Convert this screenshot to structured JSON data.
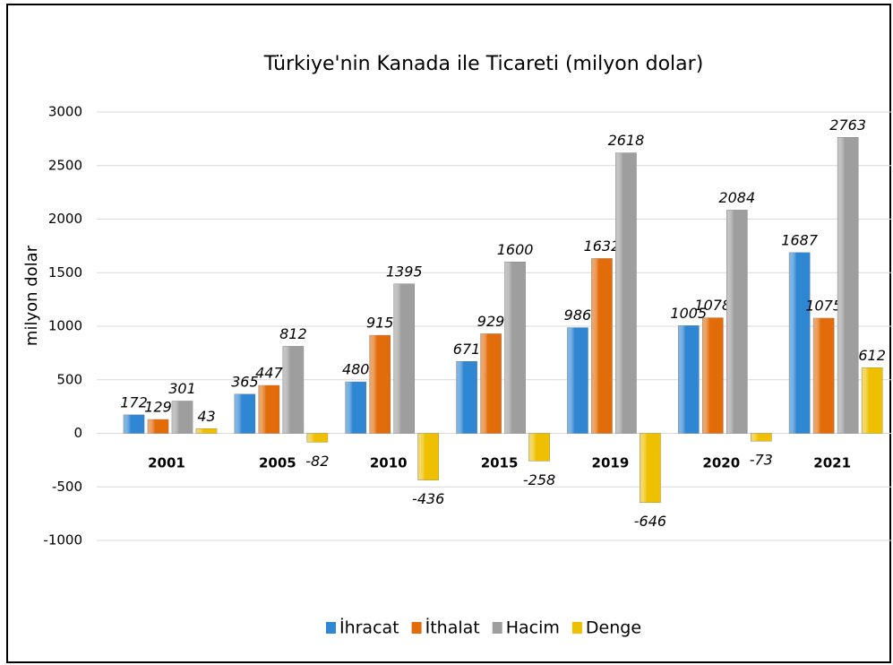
{
  "chart_data": {
    "type": "bar",
    "title": "Türkiye'nin Kanada ile Ticareti (milyon dolar)",
    "ylabel": "milyon dolar",
    "categories": [
      "2001",
      "2005",
      "2010",
      "2015",
      "2019",
      "2020",
      "2021"
    ],
    "series": [
      {
        "name": "İhracat",
        "color": "#2f86d3",
        "values": [
          172,
          365,
          480,
          671,
          986,
          1005,
          1687
        ]
      },
      {
        "name": "İthalat",
        "color": "#e36c0a",
        "values": [
          129,
          447,
          915,
          929,
          1632,
          1078,
          1075
        ]
      },
      {
        "name": "Hacim",
        "color": "#9e9e9e",
        "values": [
          301,
          812,
          1395,
          1600,
          2618,
          2084,
          2763
        ]
      },
      {
        "name": "Denge",
        "color": "#eec000",
        "values": [
          43,
          -82,
          -436,
          -258,
          -646,
          -73,
          612
        ]
      }
    ],
    "ylim": [
      -1000,
      3000
    ],
    "yticks": [
      -1000,
      -500,
      0,
      500,
      1000,
      1500,
      2000,
      2500,
      3000
    ],
    "grid": true,
    "legend": "bottom"
  }
}
